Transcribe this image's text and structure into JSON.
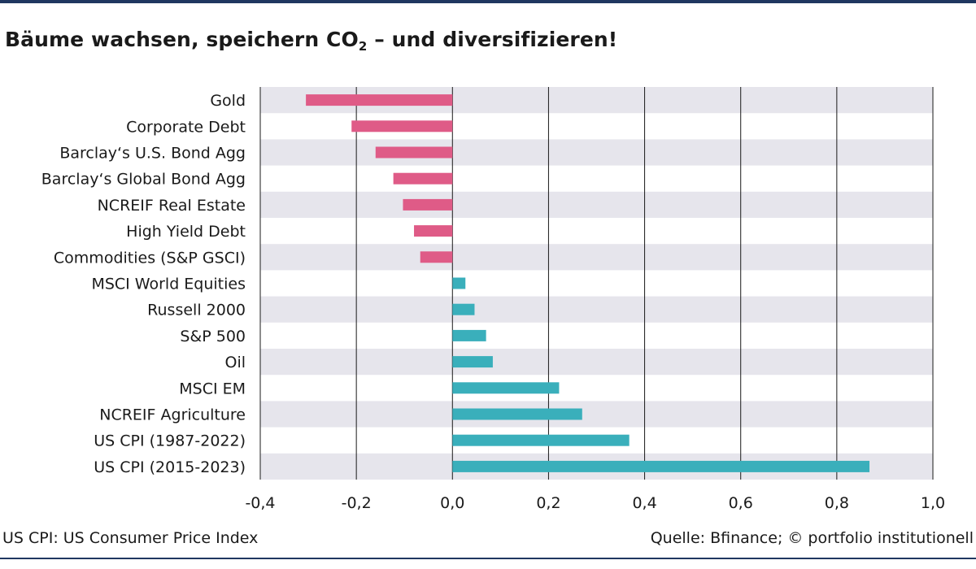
{
  "header": {
    "title_pre": "Bäume wachsen, speichern CO",
    "title_sub": "2",
    "title_post": " – und diversifizieren!"
  },
  "footer": {
    "note": "US CPI: US Consumer Price Index",
    "source": "Quelle: Bfinance; © portfolio institutionell"
  },
  "colors": {
    "negative": "#df5b87",
    "positive": "#3aafbb",
    "band": "#e6e5ec",
    "rule": "#1f3760"
  },
  "chart_data": {
    "type": "bar",
    "orientation": "horizontal",
    "categories": [
      "Gold",
      "Corporate Debt",
      "Barclay‘s U.S. Bond Agg",
      "Barclay‘s Global Bond Agg",
      "NCREIF Real Estate",
      "High Yield Debt",
      "Commodities (S&P GSCI)",
      "MSCI World Equities",
      "Russell 2000",
      "S&P 500",
      "Oil",
      "MSCI EM",
      "NCREIF Agriculture",
      "US CPI (1987-2022)",
      "US CPI (2015-2023)"
    ],
    "values": [
      -0.305,
      -0.21,
      -0.16,
      -0.123,
      -0.103,
      -0.08,
      -0.067,
      0.027,
      0.046,
      0.07,
      0.084,
      0.222,
      0.27,
      0.368,
      0.868
    ],
    "xlim": [
      -0.4,
      1.0
    ],
    "xticks": [
      -0.4,
      -0.2,
      0.0,
      0.2,
      0.4,
      0.6,
      0.8,
      1.0
    ],
    "xtick_labels": [
      "-0,4",
      "-0,2",
      "0,0",
      "0,2",
      "0,4",
      "0,6",
      "0,8",
      "1,0"
    ],
    "grid": true,
    "row_bands": "alternating"
  }
}
